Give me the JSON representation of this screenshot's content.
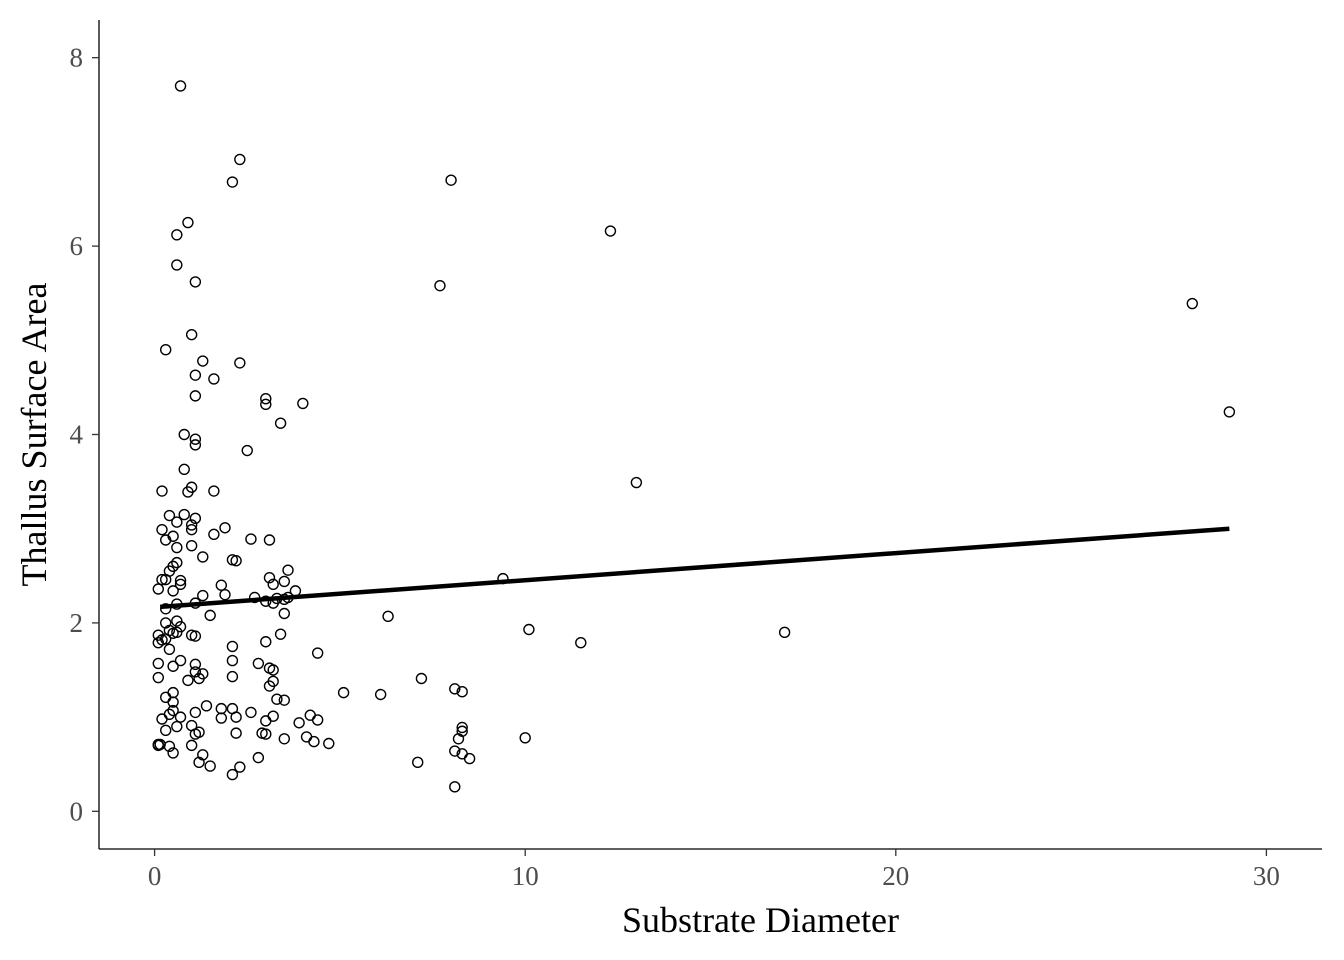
{
  "chart_data": {
    "type": "scatter",
    "xlabel": "Substrate Diameter",
    "ylabel": "Thallus Surface Area",
    "xlim": [
      -1.5,
      31.5
    ],
    "ylim": [
      -0.4,
      8.4
    ],
    "xticks": [
      0,
      10,
      20,
      30
    ],
    "yticks": [
      0,
      2,
      4,
      6,
      8
    ],
    "grid": false,
    "legend": "none",
    "colors": {
      "points": "#000000",
      "fit_line": "#000000",
      "axes": "#000000",
      "tick_labels": "#4d4d4d"
    },
    "trend_line": {
      "x": [
        0.15,
        29.0
      ],
      "y": [
        2.17,
        3.0
      ]
    },
    "points": [
      [
        0.7,
        7.7
      ],
      [
        2.3,
        6.92
      ],
      [
        2.1,
        6.68
      ],
      [
        8.0,
        6.7
      ],
      [
        12.3,
        6.16
      ],
      [
        0.9,
        6.25
      ],
      [
        0.6,
        6.12
      ],
      [
        0.6,
        5.8
      ],
      [
        1.1,
        5.62
      ],
      [
        7.7,
        5.58
      ],
      [
        28.0,
        5.39
      ],
      [
        1.0,
        5.06
      ],
      [
        0.3,
        4.9
      ],
      [
        1.3,
        4.78
      ],
      [
        2.3,
        4.76
      ],
      [
        1.1,
        4.63
      ],
      [
        1.6,
        4.59
      ],
      [
        1.1,
        4.41
      ],
      [
        3.0,
        4.38
      ],
      [
        3.0,
        4.32
      ],
      [
        4.0,
        4.33
      ],
      [
        29.0,
        4.24
      ],
      [
        3.4,
        4.12
      ],
      [
        0.8,
        4.0
      ],
      [
        1.1,
        3.95
      ],
      [
        1.1,
        3.89
      ],
      [
        2.5,
        3.83
      ],
      [
        0.8,
        3.63
      ],
      [
        13.0,
        3.49
      ],
      [
        1.0,
        3.44
      ],
      [
        0.2,
        3.4
      ],
      [
        0.9,
        3.39
      ],
      [
        1.6,
        3.4
      ],
      [
        0.4,
        3.14
      ],
      [
        0.8,
        3.15
      ],
      [
        1.1,
        3.11
      ],
      [
        0.6,
        3.07
      ],
      [
        1.0,
        3.04
      ],
      [
        1.0,
        2.99
      ],
      [
        0.2,
        2.99
      ],
      [
        1.9,
        3.01
      ],
      [
        1.6,
        2.94
      ],
      [
        0.5,
        2.92
      ],
      [
        0.3,
        2.88
      ],
      [
        2.6,
        2.89
      ],
      [
        3.1,
        2.88
      ],
      [
        0.6,
        2.8
      ],
      [
        1.0,
        2.82
      ],
      [
        1.3,
        2.7
      ],
      [
        2.1,
        2.67
      ],
      [
        2.2,
        2.66
      ],
      [
        0.6,
        2.64
      ],
      [
        0.5,
        2.6
      ],
      [
        0.4,
        2.55
      ],
      [
        3.6,
        2.56
      ],
      [
        3.1,
        2.48
      ],
      [
        9.4,
        2.47
      ],
      [
        0.2,
        2.46
      ],
      [
        0.3,
        2.46
      ],
      [
        0.7,
        2.45
      ],
      [
        3.5,
        2.44
      ],
      [
        0.7,
        2.41
      ],
      [
        3.2,
        2.41
      ],
      [
        1.8,
        2.4
      ],
      [
        0.1,
        2.36
      ],
      [
        0.5,
        2.34
      ],
      [
        3.8,
        2.34
      ],
      [
        1.9,
        2.3
      ],
      [
        1.3,
        2.29
      ],
      [
        3.3,
        2.26
      ],
      [
        2.7,
        2.27
      ],
      [
        3.5,
        2.25
      ],
      [
        3.6,
        2.27
      ],
      [
        3.0,
        2.23
      ],
      [
        3.2,
        2.21
      ],
      [
        0.6,
        2.2
      ],
      [
        1.1,
        2.21
      ],
      [
        0.3,
        2.15
      ],
      [
        3.5,
        2.1
      ],
      [
        1.5,
        2.08
      ],
      [
        6.3,
        2.07
      ],
      [
        0.6,
        2.02
      ],
      [
        0.3,
        2.0
      ],
      [
        0.7,
        1.96
      ],
      [
        0.4,
        1.92
      ],
      [
        10.1,
        1.93
      ],
      [
        0.6,
        1.9
      ],
      [
        0.5,
        1.89
      ],
      [
        17.0,
        1.9
      ],
      [
        3.4,
        1.88
      ],
      [
        1.0,
        1.87
      ],
      [
        0.1,
        1.87
      ],
      [
        1.1,
        1.86
      ],
      [
        0.2,
        1.82
      ],
      [
        0.3,
        1.83
      ],
      [
        0.1,
        1.79
      ],
      [
        3.0,
        1.8
      ],
      [
        11.5,
        1.79
      ],
      [
        2.1,
        1.75
      ],
      [
        0.4,
        1.72
      ],
      [
        4.4,
        1.68
      ],
      [
        0.7,
        1.6
      ],
      [
        2.1,
        1.6
      ],
      [
        2.8,
        1.57
      ],
      [
        1.1,
        1.56
      ],
      [
        0.1,
        1.57
      ],
      [
        0.5,
        1.54
      ],
      [
        3.1,
        1.52
      ],
      [
        3.2,
        1.5
      ],
      [
        1.1,
        1.48
      ],
      [
        1.3,
        1.46
      ],
      [
        0.1,
        1.42
      ],
      [
        2.1,
        1.43
      ],
      [
        1.2,
        1.41
      ],
      [
        7.2,
        1.41
      ],
      [
        0.9,
        1.39
      ],
      [
        3.2,
        1.38
      ],
      [
        3.1,
        1.33
      ],
      [
        8.1,
        1.3
      ],
      [
        8.3,
        1.27
      ],
      [
        5.1,
        1.26
      ],
      [
        0.5,
        1.26
      ],
      [
        6.1,
        1.24
      ],
      [
        0.3,
        1.21
      ],
      [
        3.3,
        1.19
      ],
      [
        3.5,
        1.18
      ],
      [
        0.5,
        1.16
      ],
      [
        1.4,
        1.12
      ],
      [
        1.8,
        1.09
      ],
      [
        2.1,
        1.09
      ],
      [
        0.5,
        1.07
      ],
      [
        2.6,
        1.05
      ],
      [
        1.1,
        1.05
      ],
      [
        0.4,
        1.03
      ],
      [
        4.2,
        1.02
      ],
      [
        3.2,
        1.01
      ],
      [
        2.2,
        1.0
      ],
      [
        0.7,
        1.0
      ],
      [
        1.8,
        0.99
      ],
      [
        0.2,
        0.98
      ],
      [
        4.4,
        0.97
      ],
      [
        3.0,
        0.96
      ],
      [
        3.9,
        0.94
      ],
      [
        1.0,
        0.91
      ],
      [
        0.6,
        0.9
      ],
      [
        8.3,
        0.89
      ],
      [
        8.3,
        0.85
      ],
      [
        0.3,
        0.86
      ],
      [
        1.2,
        0.84
      ],
      [
        1.1,
        0.82
      ],
      [
        2.2,
        0.83
      ],
      [
        2.9,
        0.83
      ],
      [
        3.0,
        0.82
      ],
      [
        4.1,
        0.79
      ],
      [
        8.2,
        0.77
      ],
      [
        3.5,
        0.77
      ],
      [
        10.0,
        0.78
      ],
      [
        4.3,
        0.74
      ],
      [
        4.7,
        0.72
      ],
      [
        0.1,
        0.71
      ],
      [
        0.1,
        0.7
      ],
      [
        0.15,
        0.71
      ],
      [
        1.0,
        0.7
      ],
      [
        0.4,
        0.69
      ],
      [
        8.1,
        0.64
      ],
      [
        0.5,
        0.62
      ],
      [
        1.3,
        0.6
      ],
      [
        8.3,
        0.61
      ],
      [
        8.5,
        0.56
      ],
      [
        2.8,
        0.57
      ],
      [
        1.2,
        0.52
      ],
      [
        7.1,
        0.52
      ],
      [
        1.5,
        0.48
      ],
      [
        2.3,
        0.47
      ],
      [
        2.1,
        0.39
      ],
      [
        8.1,
        0.26
      ]
    ]
  }
}
